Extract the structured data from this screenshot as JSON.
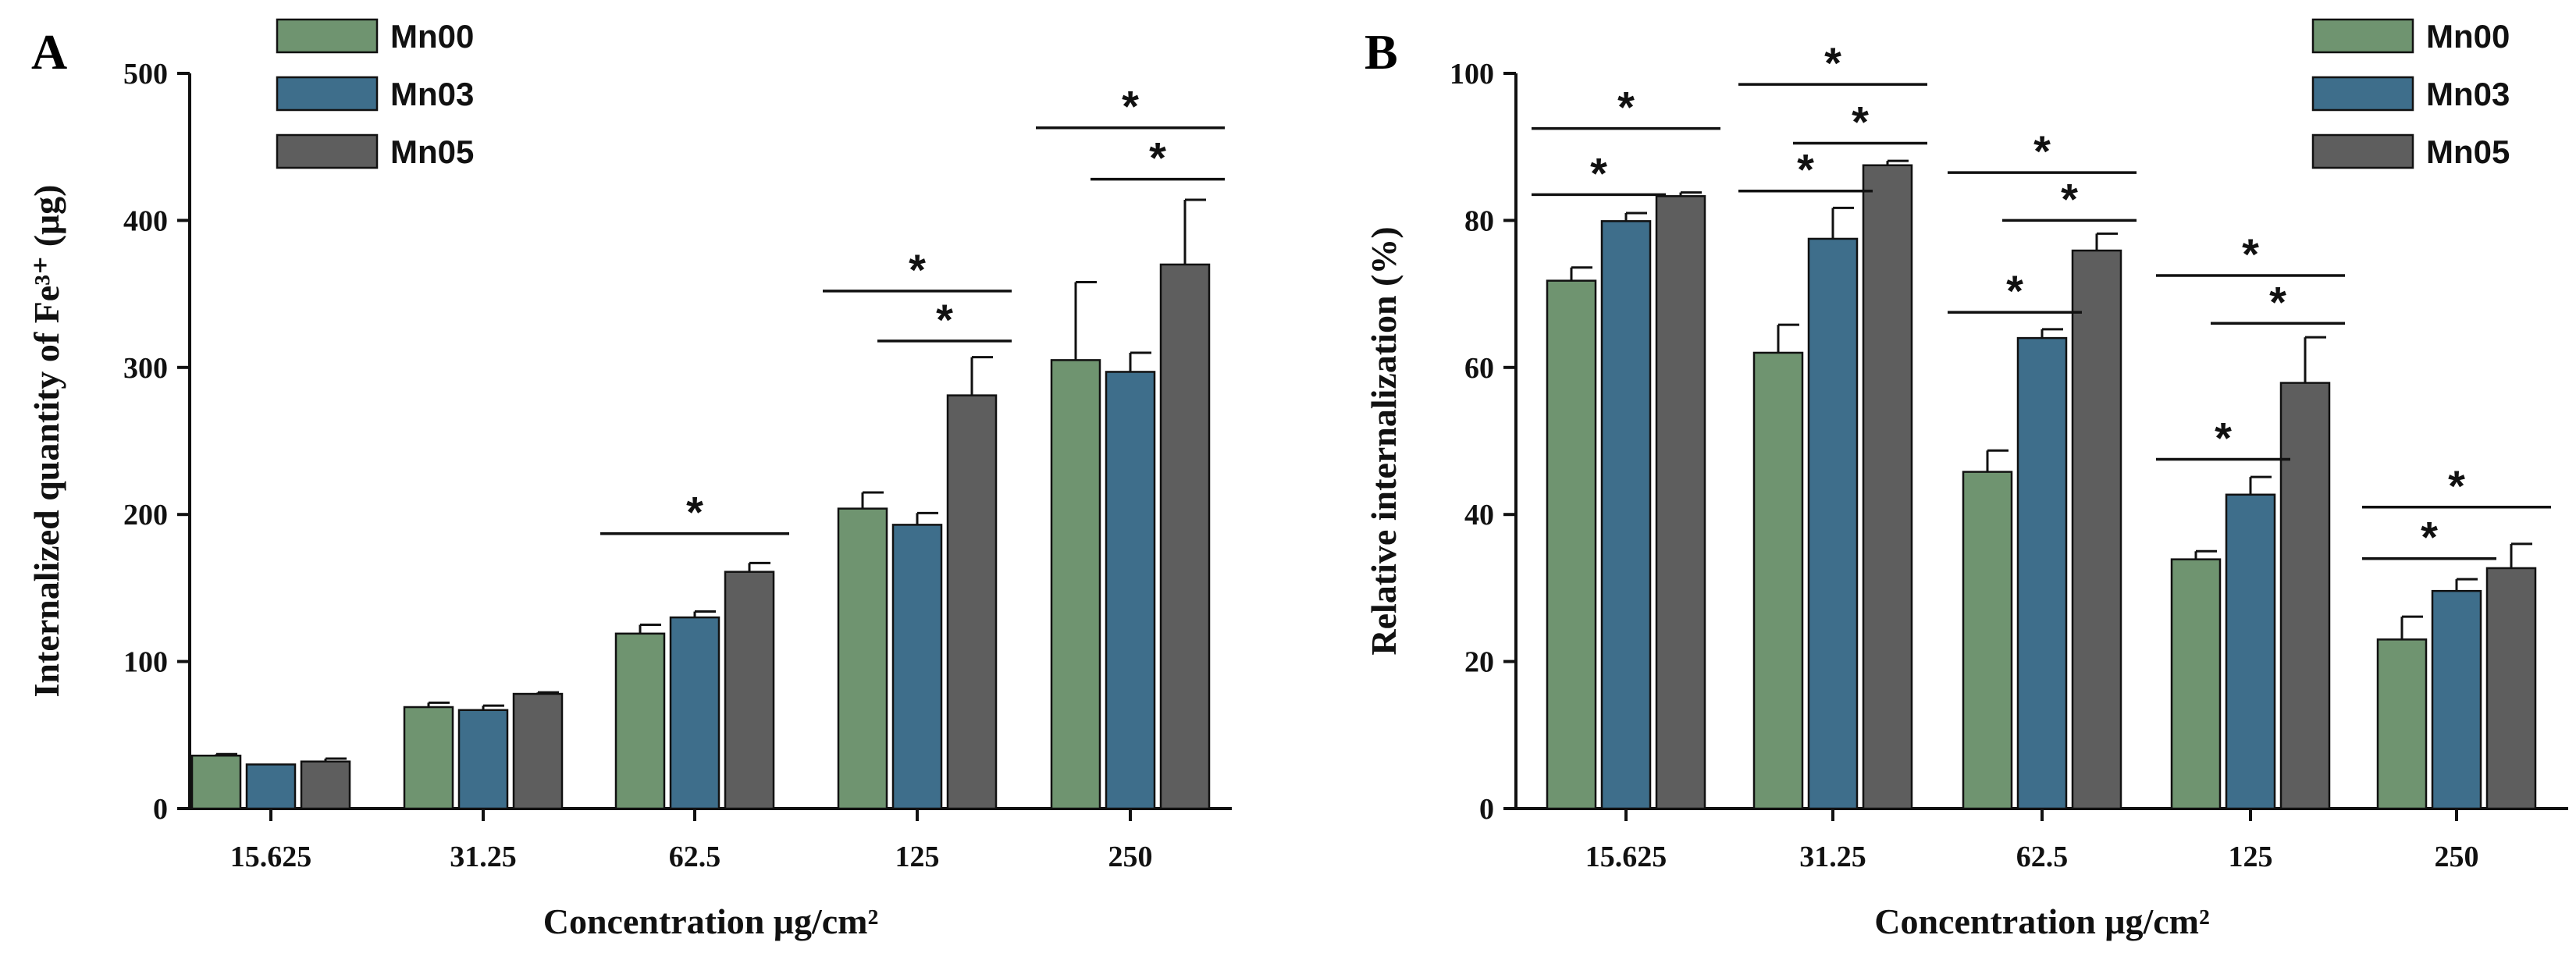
{
  "figure": {
    "series_colors": [
      "#6f9470",
      "#3e6e8b",
      "#5e5e5e"
    ]
  },
  "chart_data": [
    {
      "panel": "A",
      "type": "bar",
      "xlabel": "Concentration μg/cm²",
      "ylabel": "Internalized quantity of Fe³⁺ (μg)",
      "ylim": [
        0,
        500
      ],
      "yticks": [
        "0",
        "100",
        "200",
        "300",
        "400",
        "500"
      ],
      "categories": [
        "15.625",
        "31.25",
        "62.5",
        "125",
        "250"
      ],
      "series": [
        {
          "name": "Mn00",
          "color": "#6f9470",
          "values": [
            36,
            69,
            119,
            204,
            305
          ],
          "errors": [
            1,
            3,
            6,
            11,
            53
          ]
        },
        {
          "name": "Mn03",
          "color": "#3e6e8b",
          "values": [
            30,
            67,
            130,
            193,
            297
          ],
          "errors": [
            0,
            3,
            4,
            8,
            13
          ]
        },
        {
          "name": "Mn05",
          "color": "#5e5e5e",
          "values": [
            32,
            78,
            161,
            281,
            370
          ],
          "errors": [
            2,
            1,
            6,
            26,
            44
          ]
        }
      ],
      "legend": {
        "position": "top-left",
        "entries": [
          "Mn00",
          "Mn03",
          "Mn05"
        ]
      },
      "significance": [
        {
          "category": 2,
          "from": 0,
          "to": 2,
          "y": 187,
          "label": "*"
        },
        {
          "category": 3,
          "from": 0,
          "to": 2,
          "y": 352,
          "label": "*"
        },
        {
          "category": 3,
          "from": 1,
          "to": 2,
          "y": 318,
          "label": "*"
        },
        {
          "category": 4,
          "from": 0,
          "to": 2,
          "y": 463,
          "label": "*"
        },
        {
          "category": 4,
          "from": 1,
          "to": 2,
          "y": 428,
          "label": "*"
        }
      ]
    },
    {
      "panel": "B",
      "type": "bar",
      "xlabel": "Concentration μg/cm²",
      "ylabel": "Relative internalization (%)",
      "ylim": [
        0,
        100
      ],
      "yticks": [
        "0",
        "20",
        "40",
        "60",
        "80",
        "100"
      ],
      "categories": [
        "15.625",
        "31.25",
        "62.5",
        "125",
        "250"
      ],
      "series": [
        {
          "name": "Mn00",
          "color": "#6f9470",
          "values": [
            71.8,
            62,
            45.8,
            33.9,
            23
          ],
          "errors": [
            1.8,
            3.8,
            2.9,
            1.1,
            3.1
          ]
        },
        {
          "name": "Mn03",
          "color": "#3e6e8b",
          "values": [
            79.9,
            77.5,
            64,
            42.7,
            29.6
          ],
          "errors": [
            1.1,
            4.2,
            1.2,
            2.4,
            1.6
          ]
        },
        {
          "name": "Mn05",
          "color": "#5e5e5e",
          "values": [
            83.3,
            87.5,
            75.9,
            57.9,
            32.7
          ],
          "errors": [
            0.5,
            0.6,
            2.3,
            6.2,
            3.3
          ]
        }
      ],
      "legend": {
        "position": "top-right",
        "entries": [
          "Mn00",
          "Mn03",
          "Mn05"
        ]
      },
      "significance": [
        {
          "category": 0,
          "from": 0,
          "to": 2,
          "y": 92.5,
          "label": "*"
        },
        {
          "category": 0,
          "from": 0,
          "to": 1,
          "y": 83.5,
          "label": "*"
        },
        {
          "category": 1,
          "from": 0,
          "to": 2,
          "y": 98.5,
          "label": "*"
        },
        {
          "category": 1,
          "from": 1,
          "to": 2,
          "y": 90.5,
          "label": "*"
        },
        {
          "category": 1,
          "from": 0,
          "to": 1,
          "y": 84,
          "label": "*"
        },
        {
          "category": 2,
          "from": 0,
          "to": 2,
          "y": 86.5,
          "label": "*"
        },
        {
          "category": 2,
          "from": 1,
          "to": 2,
          "y": 80,
          "label": "*"
        },
        {
          "category": 2,
          "from": 0,
          "to": 1,
          "y": 67.5,
          "label": "*"
        },
        {
          "category": 3,
          "from": 0,
          "to": 2,
          "y": 72.5,
          "label": "*"
        },
        {
          "category": 3,
          "from": 1,
          "to": 2,
          "y": 66,
          "label": "*"
        },
        {
          "category": 3,
          "from": 0,
          "to": 1,
          "y": 47.5,
          "label": "*"
        },
        {
          "category": 4,
          "from": 0,
          "to": 2,
          "y": 41,
          "label": "*"
        },
        {
          "category": 4,
          "from": 0,
          "to": 1,
          "y": 34,
          "label": "*"
        }
      ]
    }
  ]
}
